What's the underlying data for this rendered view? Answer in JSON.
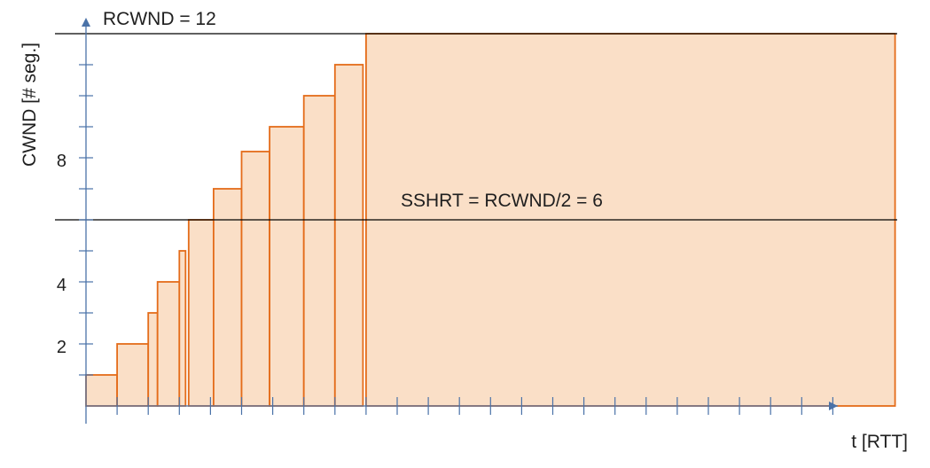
{
  "chart_data": {
    "type": "bar",
    "xlabel": "t [RTT]",
    "ylabel": "CWND [# seg.]",
    "y_tick_labels": [
      {
        "value": 2,
        "label": "2"
      },
      {
        "value": 4,
        "label": "4"
      },
      {
        "value": 8,
        "label": "8"
      }
    ],
    "y_minor_ticks": [
      1,
      2,
      3,
      4,
      5,
      6,
      7,
      8,
      9,
      10,
      11
    ],
    "x_minor_ticks": [
      1,
      2,
      3,
      4,
      5,
      6,
      7,
      8,
      9,
      10,
      11,
      12,
      13,
      14,
      15,
      16,
      17,
      18,
      19,
      20,
      21,
      22,
      23,
      24
    ],
    "xlim": [
      0,
      24
    ],
    "ylim": [
      0,
      12
    ],
    "bars": [
      {
        "x0": 0,
        "x1": 1,
        "value": 1
      },
      {
        "x0": 1,
        "x1": 2,
        "value": 2
      },
      {
        "x0": 2,
        "x1": 2.3,
        "value": 3
      },
      {
        "x0": 2.3,
        "x1": 3,
        "value": 4
      },
      {
        "x0": 3,
        "x1": 3.2,
        "value": 5
      },
      {
        "x0": 3.3,
        "x1": 4.1,
        "value": 6
      },
      {
        "x0": 4.1,
        "x1": 5,
        "value": 7
      },
      {
        "x0": 5,
        "x1": 5.9,
        "value": 8.2
      },
      {
        "x0": 5.9,
        "x1": 7,
        "value": 9
      },
      {
        "x0": 7,
        "x1": 8,
        "value": 10
      },
      {
        "x0": 8,
        "x1": 8.9,
        "value": 11
      },
      {
        "x0": 9,
        "x1": 26,
        "value": 12
      }
    ],
    "lines": [
      {
        "label": "RCWND = 12",
        "value": 12
      },
      {
        "label": "SSHRT = RCWND/2 = 6",
        "value": 6
      }
    ],
    "colors": {
      "fill": "#fadfc7",
      "stroke": "#e46c1a",
      "axis": "#4a72a8",
      "ref": "#000000"
    }
  }
}
